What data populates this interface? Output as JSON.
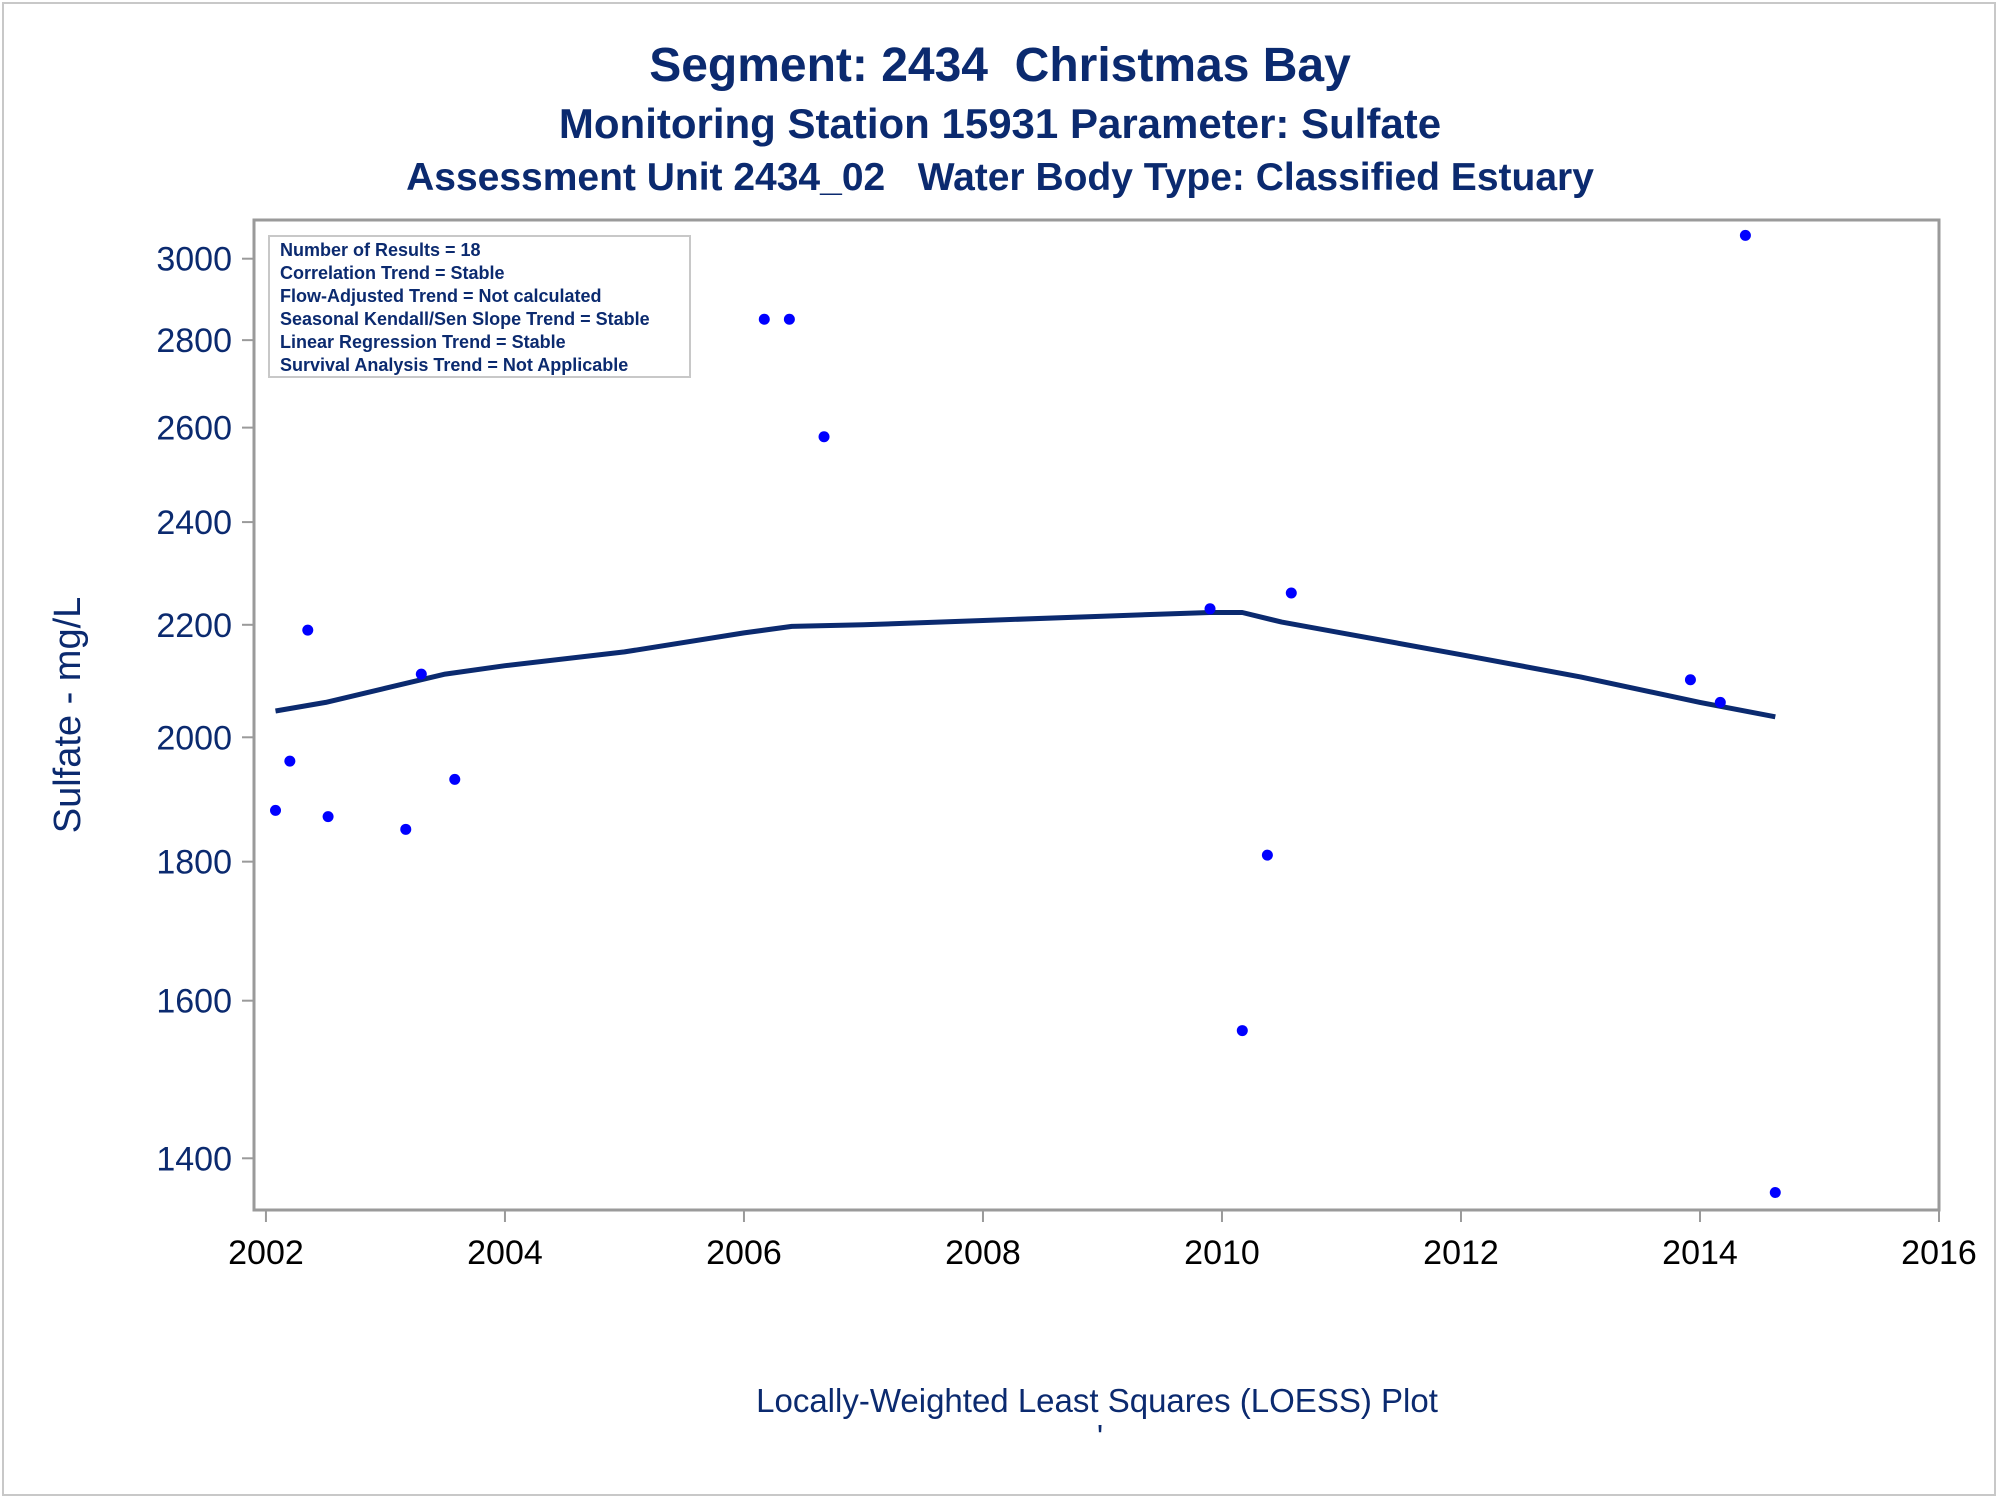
{
  "titles": {
    "line1": "Segment: 2434  Christmas Bay",
    "line2": "Monitoring Station 15931 Parameter: Sulfate",
    "line3": "Assessment Unit 2434_02   Water Body Type: Classified Estuary"
  },
  "footnote": "Locally-Weighted Least Squares (LOESS) Plot",
  "footnote_mark": "'",
  "chart_data": {
    "type": "scatter",
    "ylabel": "Sulfate - mg/L",
    "xlabel": "",
    "y_scale": "log",
    "xlim": [
      2001.9,
      2016
    ],
    "ylim": [
      1340,
      3100
    ],
    "x_ticks": [
      2002,
      2004,
      2006,
      2008,
      2010,
      2012,
      2014,
      2016
    ],
    "y_ticks": [
      1400,
      1600,
      1800,
      2000,
      2200,
      2400,
      2600,
      2800,
      3000
    ],
    "grid": false,
    "points": [
      {
        "x": 2002.08,
        "y": 1880
      },
      {
        "x": 2002.2,
        "y": 1960
      },
      {
        "x": 2002.35,
        "y": 2190
      },
      {
        "x": 2002.52,
        "y": 1870
      },
      {
        "x": 2003.17,
        "y": 1850
      },
      {
        "x": 2003.3,
        "y": 2110
      },
      {
        "x": 2003.58,
        "y": 1930
      },
      {
        "x": 2006.17,
        "y": 2850
      },
      {
        "x": 2006.38,
        "y": 2850
      },
      {
        "x": 2006.67,
        "y": 2580
      },
      {
        "x": 2009.9,
        "y": 2230
      },
      {
        "x": 2010.17,
        "y": 1560
      },
      {
        "x": 2010.38,
        "y": 1810
      },
      {
        "x": 2010.58,
        "y": 2260
      },
      {
        "x": 2013.92,
        "y": 2100
      },
      {
        "x": 2014.17,
        "y": 2060
      },
      {
        "x": 2014.38,
        "y": 3060
      },
      {
        "x": 2014.63,
        "y": 1360
      }
    ],
    "loess": [
      {
        "x": 2002.08,
        "y": 2045
      },
      {
        "x": 2002.5,
        "y": 2060
      },
      {
        "x": 2003.0,
        "y": 2085
      },
      {
        "x": 2003.5,
        "y": 2110
      },
      {
        "x": 2004.0,
        "y": 2125
      },
      {
        "x": 2005.0,
        "y": 2150
      },
      {
        "x": 2006.0,
        "y": 2185
      },
      {
        "x": 2006.4,
        "y": 2197
      },
      {
        "x": 2007.0,
        "y": 2200
      },
      {
        "x": 2008.0,
        "y": 2208
      },
      {
        "x": 2009.0,
        "y": 2216
      },
      {
        "x": 2009.9,
        "y": 2223
      },
      {
        "x": 2010.17,
        "y": 2223
      },
      {
        "x": 2010.5,
        "y": 2205
      },
      {
        "x": 2011.0,
        "y": 2185
      },
      {
        "x": 2012.0,
        "y": 2145
      },
      {
        "x": 2013.0,
        "y": 2105
      },
      {
        "x": 2014.0,
        "y": 2060
      },
      {
        "x": 2014.63,
        "y": 2035
      }
    ],
    "marker_color": "#0000ff",
    "line_color": "#0b2a6f",
    "inset_lines": [
      "Number of Results = 18",
      "Correlation Trend = Stable",
      "Flow-Adjusted Trend = Not calculated",
      "Seasonal Kendall/Sen Slope Trend = Stable",
      "Linear Regression Trend = Stable",
      "Survival Analysis Trend = Not Applicable"
    ],
    "inset_position": "top-left"
  }
}
